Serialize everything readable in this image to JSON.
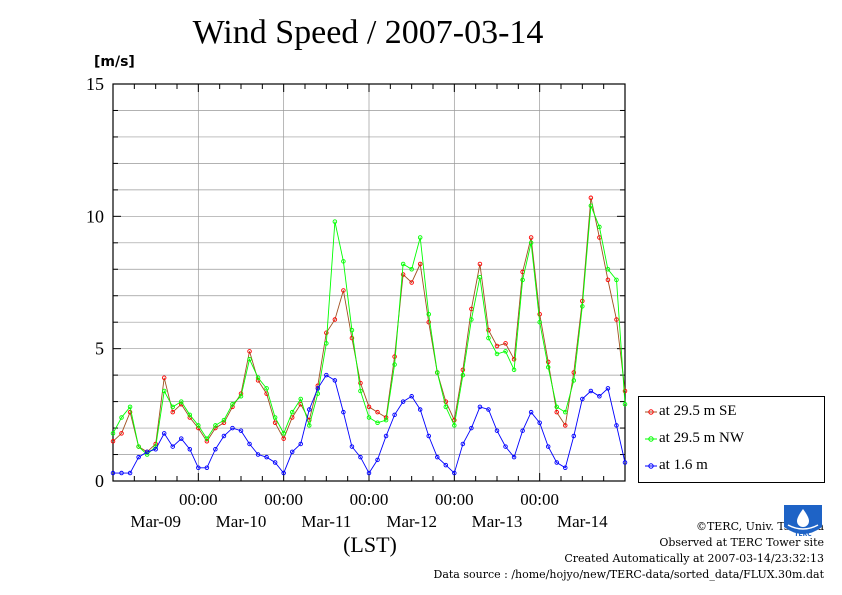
{
  "title": "Wind Speed / 2007-03-14",
  "y_unit": "[m/s]",
  "x_axis_title": "(LST)",
  "credits": {
    "copyright": "©TERC, Univ. Tsukuba",
    "observed": "Observed at TERC Tower site",
    "created": "Created Automatically at 2007-03-14/23:32:13",
    "source": "Data source : /home/hojyo/new/TERC-data/sorted_data/FLUX.30m.dat"
  },
  "logo_text": "TERC",
  "chart_data": {
    "type": "line",
    "ylim": [
      0,
      15
    ],
    "xlim": [
      0,
      6
    ],
    "y_ticks": [
      {
        "value": 0,
        "label": "0"
      },
      {
        "value": 5,
        "label": "5"
      },
      {
        "value": 10,
        "label": "10"
      },
      {
        "value": 15,
        "label": "15"
      }
    ],
    "x_ticks": [
      {
        "value": 1,
        "label": "00:00"
      },
      {
        "value": 2,
        "label": "00:00"
      },
      {
        "value": 3,
        "label": "00:00"
      },
      {
        "value": 4,
        "label": "00:00"
      },
      {
        "value": 5,
        "label": "00:00"
      }
    ],
    "day_labels": [
      {
        "value": 0.5,
        "label": "Mar-09"
      },
      {
        "value": 1.5,
        "label": "Mar-10"
      },
      {
        "value": 2.5,
        "label": "Mar-11"
      },
      {
        "value": 3.5,
        "label": "Mar-12"
      },
      {
        "value": 4.5,
        "label": "Mar-13"
      },
      {
        "value": 5.5,
        "label": "Mar-14"
      }
    ],
    "grid": true,
    "legend_position": "right-bottom",
    "series": [
      {
        "name": "at 29.5 m SE",
        "color": "#ff0000",
        "line_color": "#a05020",
        "x": [
          0.0,
          0.1,
          0.2,
          0.3,
          0.4,
          0.5,
          0.6,
          0.7,
          0.8,
          0.9,
          1.0,
          1.1,
          1.2,
          1.3,
          1.4,
          1.5,
          1.6,
          1.7,
          1.8,
          1.9,
          2.0,
          2.1,
          2.2,
          2.3,
          2.4,
          2.5,
          2.6,
          2.7,
          2.8,
          2.9,
          3.0,
          3.1,
          3.2,
          3.3,
          3.4,
          3.5,
          3.6,
          3.7,
          3.8,
          3.9,
          4.0,
          4.1,
          4.2,
          4.3,
          4.4,
          4.5,
          4.6,
          4.7,
          4.8,
          4.9,
          5.0,
          5.1,
          5.2,
          5.3,
          5.4,
          5.5,
          5.6,
          5.7,
          5.8,
          5.9,
          6.0
        ],
        "y": [
          1.5,
          1.8,
          2.6,
          1.3,
          1.1,
          1.4,
          3.9,
          2.6,
          2.9,
          2.4,
          2.0,
          1.5,
          2.0,
          2.2,
          2.8,
          3.3,
          4.9,
          3.8,
          3.3,
          2.2,
          1.6,
          2.4,
          2.9,
          2.3,
          3.6,
          5.6,
          6.1,
          7.2,
          5.4,
          3.7,
          2.8,
          2.6,
          2.4,
          4.7,
          7.8,
          7.5,
          8.2,
          6.0,
          4.1,
          3.0,
          2.3,
          4.2,
          6.5,
          8.2,
          5.7,
          5.1,
          5.2,
          4.6,
          7.9,
          9.2,
          6.3,
          4.5,
          2.6,
          2.1,
          4.1,
          6.8,
          10.7,
          9.2,
          7.6,
          6.1,
          3.4
        ]
      },
      {
        "name": "at 29.5 m NW",
        "color": "#00ff00",
        "line_color": "#00ff00",
        "x": [
          0.0,
          0.1,
          0.2,
          0.3,
          0.4,
          0.5,
          0.6,
          0.7,
          0.8,
          0.9,
          1.0,
          1.1,
          1.2,
          1.3,
          1.4,
          1.5,
          1.6,
          1.7,
          1.8,
          1.9,
          2.0,
          2.1,
          2.2,
          2.3,
          2.4,
          2.5,
          2.6,
          2.7,
          2.8,
          2.9,
          3.0,
          3.1,
          3.2,
          3.3,
          3.4,
          3.5,
          3.6,
          3.7,
          3.8,
          3.9,
          4.0,
          4.1,
          4.2,
          4.3,
          4.4,
          4.5,
          4.6,
          4.7,
          4.8,
          4.9,
          5.0,
          5.1,
          5.2,
          5.3,
          5.4,
          5.5,
          5.6,
          5.7,
          5.8,
          5.9,
          6.0
        ],
        "y": [
          1.8,
          2.4,
          2.8,
          1.3,
          1.0,
          1.3,
          3.4,
          2.8,
          3.0,
          2.5,
          2.1,
          1.6,
          2.1,
          2.3,
          2.9,
          3.2,
          4.6,
          3.9,
          3.5,
          2.4,
          1.8,
          2.6,
          3.1,
          2.1,
          3.3,
          5.2,
          9.8,
          8.3,
          5.7,
          3.4,
          2.4,
          2.2,
          2.3,
          4.4,
          8.2,
          8.0,
          9.2,
          6.3,
          4.1,
          2.8,
          2.1,
          4.0,
          6.1,
          7.7,
          5.4,
          4.8,
          4.9,
          4.2,
          7.6,
          9.0,
          6.0,
          4.3,
          2.8,
          2.6,
          3.8,
          6.6,
          10.4,
          9.6,
          8.0,
          7.6,
          2.9
        ]
      },
      {
        "name": "at 1.6 m",
        "color": "#0000ff",
        "line_color": "#0000ff",
        "x": [
          0.0,
          0.1,
          0.2,
          0.3,
          0.4,
          0.5,
          0.6,
          0.7,
          0.8,
          0.9,
          1.0,
          1.1,
          1.2,
          1.3,
          1.4,
          1.5,
          1.6,
          1.7,
          1.8,
          1.9,
          2.0,
          2.1,
          2.2,
          2.3,
          2.4,
          2.5,
          2.6,
          2.7,
          2.8,
          2.9,
          3.0,
          3.1,
          3.2,
          3.3,
          3.4,
          3.5,
          3.6,
          3.7,
          3.8,
          3.9,
          4.0,
          4.1,
          4.2,
          4.3,
          4.4,
          4.5,
          4.6,
          4.7,
          4.8,
          4.9,
          5.0,
          5.1,
          5.2,
          5.3,
          5.4,
          5.5,
          5.6,
          5.7,
          5.8,
          5.9,
          6.0
        ],
        "y": [
          0.3,
          0.3,
          0.3,
          0.9,
          1.1,
          1.2,
          1.8,
          1.3,
          1.6,
          1.2,
          0.5,
          0.5,
          1.2,
          1.7,
          2.0,
          1.9,
          1.4,
          1.0,
          0.9,
          0.7,
          0.3,
          1.1,
          1.4,
          2.7,
          3.5,
          4.0,
          3.8,
          2.6,
          1.3,
          0.9,
          0.3,
          0.8,
          1.7,
          2.5,
          3.0,
          3.2,
          2.7,
          1.7,
          0.9,
          0.6,
          0.3,
          1.4,
          2.0,
          2.8,
          2.7,
          1.9,
          1.3,
          0.9,
          1.9,
          2.6,
          2.2,
          1.3,
          0.7,
          0.5,
          1.7,
          3.1,
          3.4,
          3.2,
          3.5,
          2.1,
          0.7
        ]
      }
    ]
  }
}
